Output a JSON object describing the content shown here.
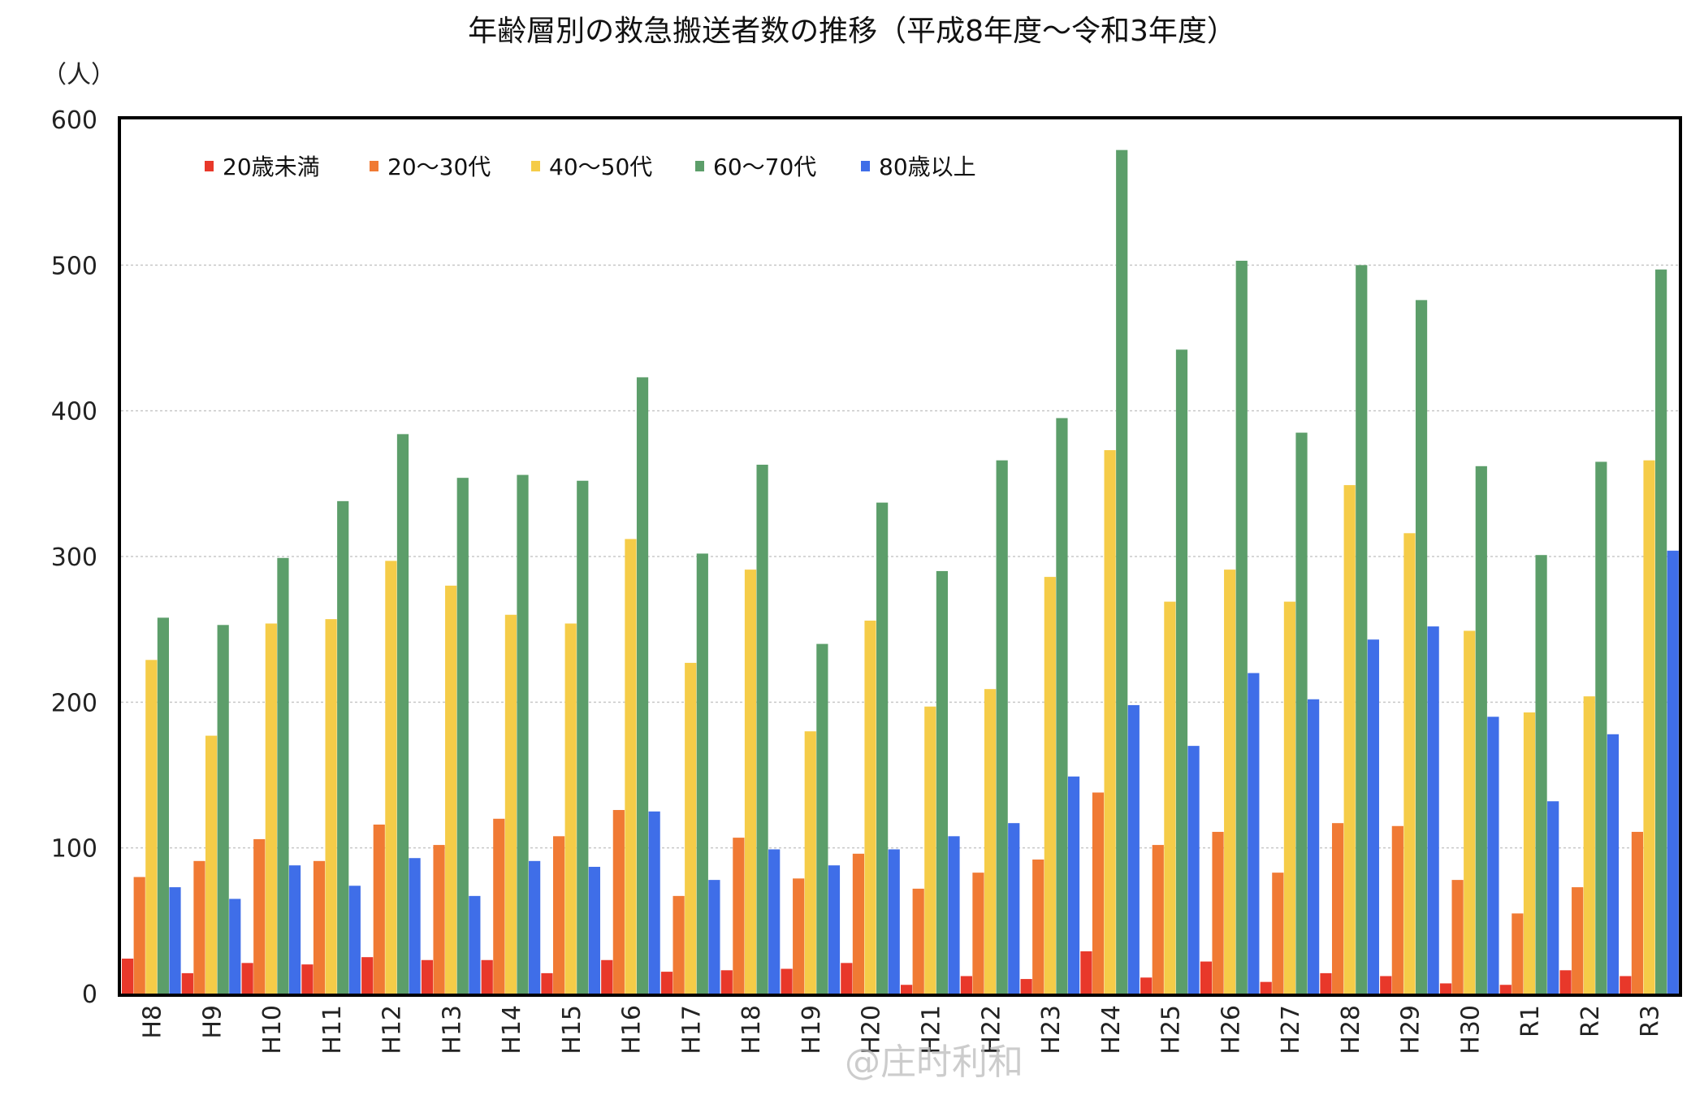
{
  "chart_data": {
    "type": "bar",
    "title": "年齢層別の救急搬送者数の推移（平成8年度～令和3年度）",
    "ylabel": "（人）",
    "xlabel": "",
    "ylim": [
      0,
      600
    ],
    "yticks": [
      0,
      100,
      200,
      300,
      400,
      500,
      600
    ],
    "grid": true,
    "legend_position": "top-left",
    "categories": [
      "H8",
      "H9",
      "H10",
      "H11",
      "H12",
      "H13",
      "H14",
      "H15",
      "H16",
      "H17",
      "H18",
      "H19",
      "H20",
      "H21",
      "H22",
      "H23",
      "H24",
      "H25",
      "H26",
      "H27",
      "H28",
      "H29",
      "H30",
      "R1",
      "R2",
      "R3"
    ],
    "series": [
      {
        "name": "20歳未満",
        "color": "#e8382a",
        "values": [
          24,
          14,
          21,
          20,
          25,
          23,
          23,
          14,
          23,
          15,
          16,
          17,
          21,
          6,
          12,
          10,
          29,
          11,
          22,
          8,
          14,
          12,
          7,
          6,
          16,
          12
        ]
      },
      {
        "name": "20～30代",
        "color": "#f07a34",
        "values": [
          80,
          91,
          106,
          91,
          116,
          102,
          120,
          108,
          126,
          67,
          107,
          79,
          96,
          72,
          83,
          92,
          138,
          102,
          111,
          83,
          117,
          115,
          78,
          55,
          73,
          111
        ]
      },
      {
        "name": "40～50代",
        "color": "#f5cc48",
        "values": [
          229,
          177,
          254,
          257,
          297,
          280,
          260,
          254,
          312,
          227,
          291,
          180,
          256,
          197,
          209,
          286,
          373,
          269,
          291,
          269,
          349,
          316,
          249,
          193,
          204,
          366
        ]
      },
      {
        "name": "60～70代",
        "color": "#5c9e6a",
        "values": [
          258,
          253,
          299,
          338,
          384,
          354,
          356,
          352,
          423,
          302,
          363,
          240,
          337,
          290,
          366,
          395,
          579,
          442,
          503,
          385,
          500,
          476,
          362,
          301,
          365,
          497
        ]
      },
      {
        "name": "80歳以上",
        "color": "#3f6ee8",
        "values": [
          73,
          65,
          88,
          74,
          93,
          67,
          91,
          87,
          125,
          78,
          99,
          88,
          99,
          108,
          117,
          149,
          198,
          170,
          220,
          202,
          243,
          252,
          190,
          132,
          178,
          304
        ]
      }
    ]
  },
  "watermark": "@庄时利和"
}
